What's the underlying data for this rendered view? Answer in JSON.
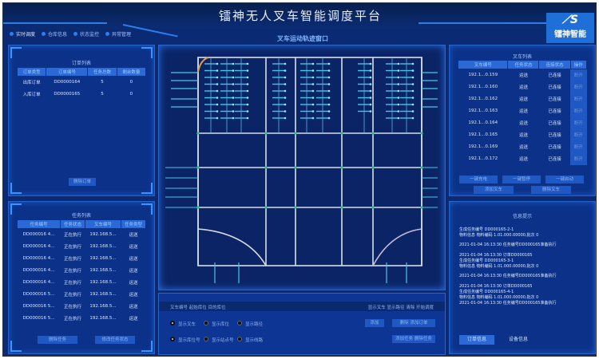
{
  "header": {
    "title": "镭神无人叉车智能调度平台",
    "logo_text": "镭神智能"
  },
  "nav": [
    {
      "label": "实时调度",
      "active": true
    },
    {
      "label": "仓库信息"
    },
    {
      "label": "状态监控"
    },
    {
      "label": "异常管理"
    }
  ],
  "map": {
    "title": "叉车运动轨迹窗口"
  },
  "orders": {
    "title": "订单列表",
    "columns": [
      "订单类型",
      "订单编号",
      "任务总数",
      "剩余数量"
    ],
    "rows": [
      [
        "出库订单",
        "DD0000164",
        "5",
        "0"
      ],
      [
        "入库订单",
        "DD0000165",
        "5",
        "0"
      ]
    ],
    "delete_button": "删除订单"
  },
  "tasks": {
    "title": "任务列表",
    "columns": [
      "任务编号",
      "任务状态",
      "叉车编号",
      "任务类型"
    ],
    "rows": [
      [
        "DD000016 4...",
        "正在执行",
        "192.168.5...",
        "运送"
      ],
      [
        "DD000016 4...",
        "正在执行",
        "192.168.5...",
        "运送"
      ],
      [
        "DD000016 4...",
        "正在执行",
        "192.168.5...",
        "运送"
      ],
      [
        "DD000016 4...",
        "正在执行",
        "192.168.5...",
        "运送"
      ],
      [
        "DD000016 4...",
        "正在执行",
        "192.168.5...",
        "运送"
      ],
      [
        "DD000016 5...",
        "正在执行",
        "192.168.5...",
        "运送"
      ],
      [
        "DD000016 5...",
        "正在执行",
        "192.168.5...",
        "运送"
      ],
      [
        "DD000016 5...",
        "正在执行",
        "192.168.5...",
        "运送"
      ]
    ],
    "delete_button": "删除任务",
    "modify_button": "修改任务状态"
  },
  "forklifts": {
    "title": "叉车列表",
    "columns": [
      "叉车编号",
      "任务状态",
      "连接状态",
      "操作"
    ],
    "rows": [
      [
        "192.1...0.159",
        "运送",
        "已连接",
        "断开"
      ],
      [
        "192.1...0.160",
        "运送",
        "已连接",
        "断开"
      ],
      [
        "192.1...0.162",
        "运送",
        "已连接",
        "断开"
      ],
      [
        "192.1...0.163",
        "运送",
        "已连接",
        "断开"
      ],
      [
        "192.1...0.164",
        "运送",
        "已连接",
        "断开"
      ],
      [
        "192.1...0.165",
        "运送",
        "已连接",
        "断开"
      ],
      [
        "192.1...0.169",
        "运送",
        "已连接",
        "断开"
      ],
      [
        "192.1...0.172",
        "运送",
        "已连接",
        "断开"
      ]
    ],
    "buttons": [
      "一键充电",
      "一键暂停",
      "一键启动",
      "添加叉车",
      "删除叉车"
    ]
  },
  "info": {
    "title": "信息提示",
    "log": [
      "生成任务编号 DD000165-2-1",
      "物料信息 物料编码 1.01.000.00000,批次 0",
      "2021-01-04 16:13:30 任务编号DD000165准备执行",
      "2021-01-04 16:13:30 订单DD000165",
      "生成任务编号 DD000165-3-1",
      "物料信息 物料编码 1.01.000.00000,批次 0",
      "2021-01-04 16:13:30 任务编号DD000165准备执行",
      "2021-01-04 16:13:30 订单DD000165",
      "生成任务编号 DD000165-4-1",
      "物料信息 物料编码 1.01.000.00000,批次 0",
      "2021-01-04 16:13:30 任务编号DD000165准备执行"
    ],
    "tabs": [
      "订单信息",
      "设备信息"
    ]
  },
  "control": {
    "left_header": "叉车编号 起始库位 目的库位",
    "right_buttons": [
      "显示叉车",
      "显示路径",
      "清除",
      "开始调度"
    ],
    "options_row1": [
      "显示叉车",
      "显示库位",
      "显示路径"
    ],
    "options_row2": [
      "显示库位号",
      "显示站点号",
      "显示线路"
    ],
    "buttons_row1": [
      "添加",
      "删除 添加订单"
    ],
    "buttons_row2": [
      "添加任务 删除任务"
    ]
  }
}
